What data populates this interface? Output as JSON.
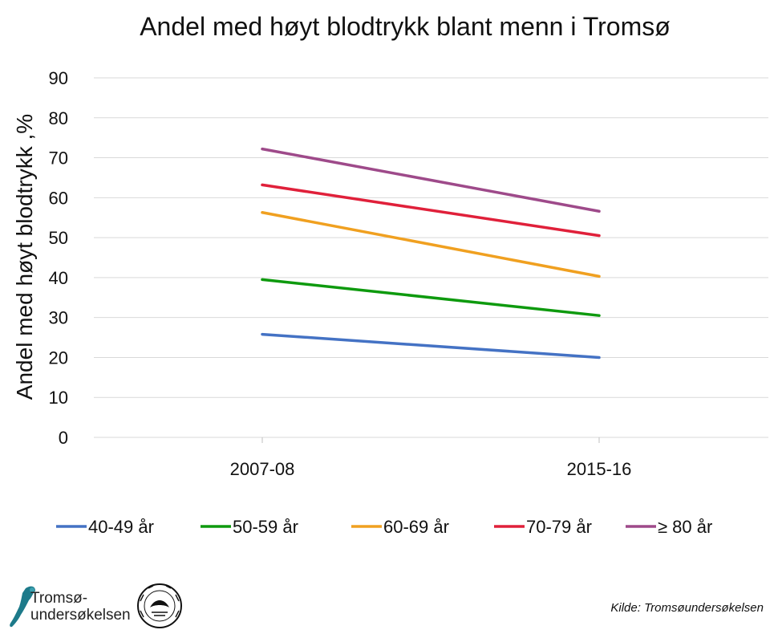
{
  "chart_data": {
    "type": "line",
    "title": "Andel med høyt blodtrykk blant menn i Tromsø",
    "ylabel": "Andel med høyt blodtrykk ,%",
    "xlabel": "",
    "categories": [
      "2007-08",
      "2015-16"
    ],
    "ylim": [
      0,
      90
    ],
    "yticks": [
      0,
      10,
      20,
      30,
      40,
      50,
      60,
      70,
      80,
      90
    ],
    "grid": true,
    "legend_position": "bottom",
    "series": [
      {
        "name": "40-49 år",
        "values": [
          25.8,
          20.0
        ],
        "color": "#4472C4"
      },
      {
        "name": "50-59 år",
        "values": [
          39.5,
          30.5
        ],
        "color": "#0E9A0E"
      },
      {
        "name": "60-69 år",
        "values": [
          56.3,
          40.3
        ],
        "color": "#F0A020"
      },
      {
        "name": "70-79 år",
        "values": [
          63.2,
          50.5
        ],
        "color": "#E0203A"
      },
      {
        "name": "≥ 80 år",
        "values": [
          72.2,
          56.6
        ],
        "color": "#9E4A8A"
      }
    ]
  },
  "footer": {
    "source": "Kilde: Tromsøundersøkelsen",
    "logo_line1": "Tromsø-",
    "logo_line2": "undersøkelsen"
  }
}
